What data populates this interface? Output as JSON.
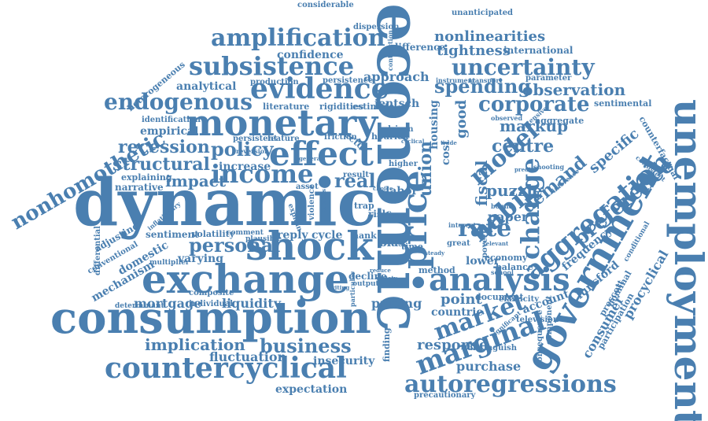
{
  "colors": {
    "word": "#4a7fb0",
    "background": "#ffffff"
  },
  "words": {
    "economic": "economic",
    "dynamic": "dynamic",
    "consumption": "consumption",
    "exchange": "exchange",
    "shock": "shock",
    "monetary": "monetary",
    "unemployment": "unemployment",
    "government": "government",
    "countercyclical": "countercyclical",
    "effect": "effect",
    "income": "income",
    "evidence": "evidence",
    "subsistence": "subsistence",
    "amplification": "amplification",
    "uncertainty": "uncertainty",
    "analysis": "analysis",
    "marginal": "marginal",
    "autoregressions": "autoregressions",
    "market": "market",
    "aggregation": "aggregation",
    "change": "change",
    "habit": "habit",
    "model": "model",
    "price": "price",
    "rate": "rate",
    "preference": "preference",
    "endogenous": "endogenous",
    "nonhomothetic": "nonhomothetic",
    "corporate": "corporate",
    "spending": "spending",
    "observation": "observation",
    "business": "business",
    "implication": "implication",
    "personal": "personal",
    "policy": "policy",
    "recession": "recession",
    "structural": "structural",
    "impact": "impact",
    "real": "real",
    "increase": "increase",
    "centre": "centre",
    "markup": "markup",
    "demand": "demand",
    "specific": "specific",
    "puzzle": "puzzle",
    "paper": "paper",
    "fluctuation": "fluctuation",
    "mortgage": "mortgage",
    "liquidity": "liquidity",
    "insecurity": "insecurity",
    "expectation": "expectation",
    "pricing": "pricing",
    "point": "point",
    "response": "response",
    "purchase": "purchase",
    "consumer": "consumer",
    "procyclical": "procyclical",
    "union": "union",
    "fiscal": "fiscal",
    "nonlinearities": "nonlinearities",
    "tightness": "tightness",
    "international": "international",
    "difference": "difference",
    "confidence": "confidence",
    "analytical": "analytical",
    "approach": "approach",
    "jentsch": "jentsch",
    "hodrick": "hodrick",
    "labor": "labor",
    "cost": "cost",
    "good": "good",
    "housing": "housing",
    "frequency": "frequency",
    "lunsford": "lunsford",
    "nominal": "nominal",
    "prescott": "prescott",
    "participation": "participation",
    "account": "account",
    "countrie": "countrie",
    "document": "document",
    "lower": "lower",
    "economy": "economy",
    "balance": "balance",
    "method": "method",
    "decline": "decline",
    "bias": "bias",
    "time": "time",
    "reply": "reply",
    "cycle": "cycle",
    "hank": "hank",
    "firm": "firm",
    "risk": "risk",
    "varying": "varying",
    "volatility": "volatility",
    "sentiment": "sentiment",
    "domestic": "domestic",
    "mechanism": "mechanism",
    "conventional": "conventional",
    "differential": "differential",
    "adjusting": "adjusting",
    "narrative": "narrative",
    "explaining": "explaining",
    "empirical": "empirical",
    "identification": "identification",
    "heterogeneous": "heterogeneous",
    "literature": "literature",
    "rigidities": "rigidities",
    "estimate": "estimate",
    "production": "production",
    "persistence": "persistence",
    "considerable": "considerable",
    "dispersion": "dispersion",
    "unanticipated": "unanticipated",
    "parameter": "parameter",
    "sentimental": "sentimental",
    "aggregate": "aggregate",
    "counterfactual": "counterfactual",
    "precautionary": "precautionary",
    "finding": "finding",
    "distinguish": "distinguish",
    "television": "television",
    "component": "component",
    "consequence": "consequence",
    "elasticity": "elasticity",
    "composite": "composite",
    "individual": "individual",
    "determinant": "determinant",
    "multiplier": "multiplier",
    "comment": "comment",
    "plausible": "plausible",
    "persistent": "persistent",
    "feature": "feature",
    "friction": "friction",
    "vector": "vector",
    "result": "result",
    "asset": "asset",
    "driven": "driven",
    "higher": "higher",
    "trap": "trap",
    "violence": "violence",
    "explain": "explain",
    "output": "output",
    "great": "great",
    "instrument": "instrument",
    "transport": "transport",
    "observed": "observed",
    "inflationary": "inflationary",
    "school": "school",
    "shooting": "shooting",
    "bound": "bound",
    "interest": "interest",
    "poverty": "poverty",
    "writing": "writing",
    "reduce": "reduce",
    "variety": "variety",
    "steady": "steady",
    "consistent": "consistent",
    "significant": "significant",
    "extensive": "extensive",
    "inference": "inference",
    "contraction": "contraction",
    "general": "general",
    "reversion": "reversion",
    "sectoral": "sectoral",
    "relevant": "relevant",
    "predict": "predict",
    "particular": "particular",
    "trade": "trade",
    "conditional": "conditional",
    "choice": "choice",
    "cyclical": "cyclical"
  }
}
